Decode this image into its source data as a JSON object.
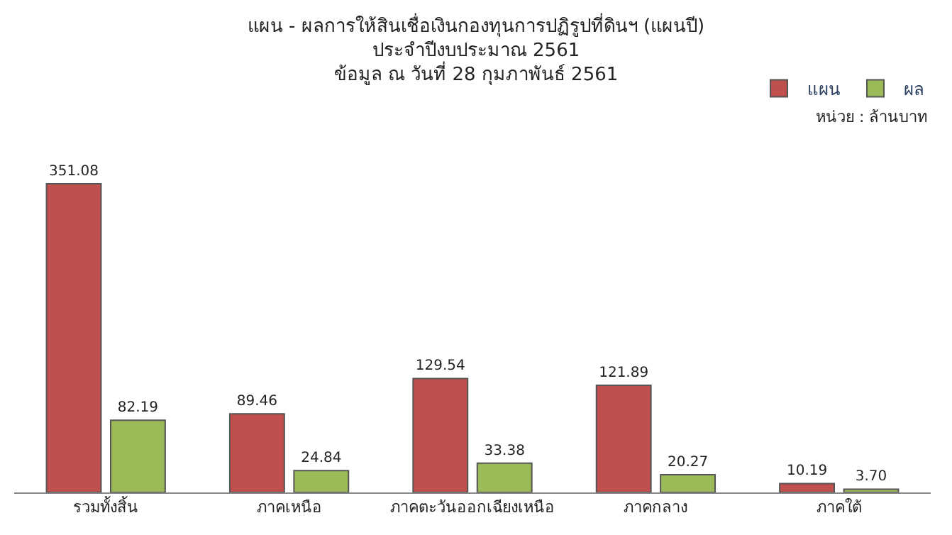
{
  "chart_data": {
    "type": "bar",
    "title": "แผน - ผลการให้สินเชื่อเงินกองทุนการปฏิรูปที่ดินฯ (แผนปี)\nประจำปีงบประมาณ 2561\nข้อมูล ณ วันที่ 28 กุมภาพันธ์ 2561",
    "categories": [
      "รวมทั้งสิ้น",
      "ภาคเหนือ",
      "ภาคตะวันออกเฉียงเหนือ",
      "ภาคกลาง",
      "ภาคใต้"
    ],
    "series": [
      {
        "name": "แผน",
        "color": "#c0504d",
        "values": [
          351.08,
          89.46,
          129.54,
          121.89,
          10.19
        ],
        "value_labels": [
          "351.08",
          "89.46",
          "129.54",
          "121.89",
          "10.19"
        ]
      },
      {
        "name": "ผล",
        "color": "#9bbb59",
        "values": [
          82.19,
          24.84,
          33.38,
          20.27,
          3.7
        ],
        "value_labels": [
          "82.19",
          "24.84",
          "33.38",
          "20.27",
          "3.70"
        ]
      }
    ],
    "annotations": [
      "หน่วย : ล้านบาท"
    ],
    "legend": "top right"
  }
}
